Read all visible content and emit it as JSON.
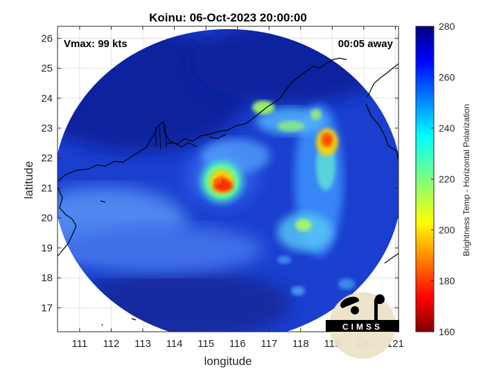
{
  "chart_data": {
    "type": "heatmap",
    "title": "Koinu: 06-Oct-2023 20:00:00",
    "xlabel": "longitude",
    "ylabel": "latitude",
    "xlim": [
      110.3,
      121.1
    ],
    "ylim": [
      16.2,
      26.4
    ],
    "xticks": [
      111,
      112,
      113,
      114,
      115,
      116,
      117,
      118,
      119,
      120,
      121
    ],
    "yticks": [
      17,
      18,
      19,
      20,
      21,
      22,
      23,
      24,
      25,
      26
    ],
    "annotations": {
      "vmax": "Vmax: 99 kts",
      "time_offset": "00:05 away"
    },
    "storm_center": {
      "lon": 115.5,
      "lat": 21.0
    },
    "colorbar": {
      "label": "Brightness Temp - Horizontal Polarization",
      "min": 160,
      "max": 280,
      "ticks": [
        160,
        180,
        200,
        220,
        240,
        260,
        280
      ],
      "colormap": "jet"
    },
    "logo_text": "CIMSS",
    "grid": true,
    "features": [
      {
        "lon": 115.5,
        "lat": 21.0,
        "temp": 185
      },
      {
        "lon": 115.6,
        "lat": 21.3,
        "temp": 220
      },
      {
        "lon": 118.8,
        "lat": 22.6,
        "temp": 182
      },
      {
        "lon": 118.9,
        "lat": 22.0,
        "temp": 225
      },
      {
        "lon": 116.7,
        "lat": 23.6,
        "temp": 230
      },
      {
        "lon": 118.0,
        "lat": 23.0,
        "temp": 232
      },
      {
        "lon": 118.1,
        "lat": 20.0,
        "temp": 228
      },
      {
        "lon": 118.5,
        "lat": 19.2,
        "temp": 240
      }
    ]
  }
}
